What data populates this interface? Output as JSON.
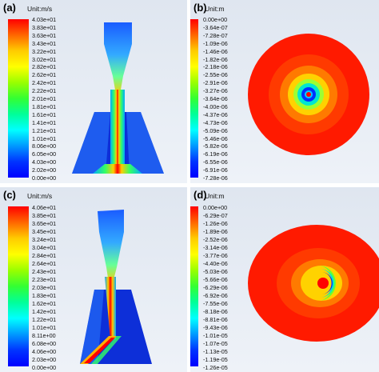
{
  "panels": [
    {
      "label": "(a)",
      "unit": "Unit:m/s",
      "ticks": [
        "4.03e+01",
        "3.83e+01",
        "3.63e+01",
        "3.43e+01",
        "3.22e+01",
        "3.02e+01",
        "2.82e+01",
        "2.62e+01",
        "2.42e+01",
        "2.22e+01",
        "2.01e+01",
        "1.81e+01",
        "1.61e+01",
        "1.41e+01",
        "1.21e+01",
        "1.01e+01",
        "8.06e+00",
        "6.05e+00",
        "4.03e+00",
        "2.02e+00",
        "0.00e+00"
      ]
    },
    {
      "label": "(b)",
      "unit": "Unit:m",
      "ticks": [
        "0.00e+00",
        "-3.64e-07",
        "-7.28e-07",
        "-1.09e-06",
        "-1.46e-06",
        "-1.82e-06",
        "-2.18e-06",
        "-2.55e-06",
        "-2.91e-06",
        "-3.27e-06",
        "-3.64e-06",
        "-4.00e-06",
        "-4.37e-06",
        "-4.73e-06",
        "-5.09e-06",
        "-5.46e-06",
        "-5.82e-06",
        "-6.19e-06",
        "-6.55e-06",
        "-6.91e-06",
        "-7.28e-06"
      ]
    },
    {
      "label": "(c)",
      "unit": "Unit:m/s",
      "ticks": [
        "4.06e+01",
        "3.85e+01",
        "3.65e+01",
        "3.45e+01",
        "3.24e+01",
        "3.04e+01",
        "2.84e+01",
        "2.64e+01",
        "2.43e+01",
        "2.23e+01",
        "2.03e+01",
        "1.83e+01",
        "1.62e+01",
        "1.42e+01",
        "1.22e+01",
        "1.01e+01",
        "8.11e+00",
        "6.08e+00",
        "4.06e+00",
        "2.03e+00",
        "0.00e+00"
      ]
    },
    {
      "label": "(d)",
      "unit": "Unit:m",
      "ticks": [
        "0.00e+00",
        "-6.29e-07",
        "-1.26e-06",
        "-1.89e-06",
        "-2.52e-06",
        "-3.14e-06",
        "-3.77e-06",
        "-4.40e-06",
        "-5.03e-06",
        "-5.66e-06",
        "-6.29e-06",
        "-6.92e-06",
        "-7.55e-06",
        "-8.18e-06",
        "-8.81e-06",
        "-9.43e-06",
        "-1.01e-05",
        "-1.07e-05",
        "-1.13e-05",
        "-1.19e-05",
        "-1.26e-05"
      ]
    }
  ],
  "colors": {
    "ansys_scale": [
      "#ff0000",
      "#ff3300",
      "#ff6600",
      "#ff9900",
      "#ffcc00",
      "#ffff00",
      "#ccff00",
      "#99ff00",
      "#66ff00",
      "#33ff33",
      "#00ff66",
      "#00ff99",
      "#00ffcc",
      "#00ffff",
      "#00ccff",
      "#0099ff",
      "#0066ff",
      "#0033ff",
      "#0000ff"
    ],
    "panel_bg": "#e4eaf3"
  }
}
